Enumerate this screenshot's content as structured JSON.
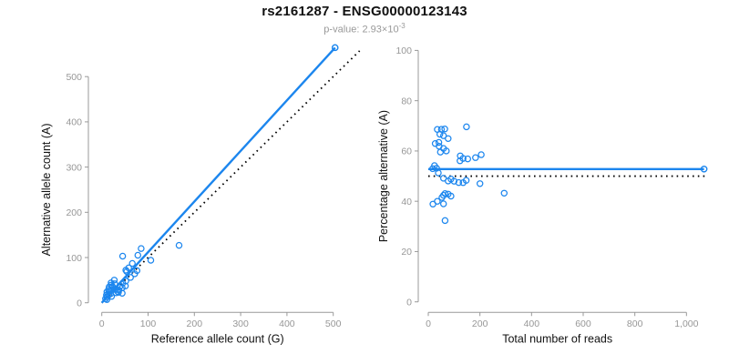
{
  "header": {
    "title": "rs2161287 - ENSG00000123143",
    "subtitle_prefix": "p-value: 2.93×10",
    "subtitle_exponent": "-3"
  },
  "colors": {
    "accent_blue": "#1C86EE",
    "dotted_line_black": "#000000",
    "axis_line_gray": "#999999",
    "tick_label_gray": "#979797",
    "axis_title_black": "#111111",
    "subtitle_gray": "#999999"
  },
  "samples": [
    [
      16,
      35
    ],
    [
      20,
      44
    ],
    [
      45,
      103
    ],
    [
      11,
      24
    ],
    [
      15,
      30
    ],
    [
      20,
      39
    ],
    [
      27,
      50
    ],
    [
      10,
      17
    ],
    [
      15,
      26
    ],
    [
      16,
      26
    ],
    [
      23,
      36
    ],
    [
      19,
      28
    ],
    [
      28,
      42
    ],
    [
      52,
      72
    ],
    [
      58,
      77
    ],
    [
      54,
      69
    ],
    [
      66,
      87
    ],
    [
      78,
      105
    ],
    [
      85,
      120
    ],
    [
      11,
      13
    ],
    [
      15,
      17
    ],
    [
      8,
      9
    ],
    [
      19,
      20
    ],
    [
      30,
      29
    ],
    [
      40,
      37
    ],
    [
      45,
      43
    ],
    [
      52,
      48
    ],
    [
      62,
      56
    ],
    [
      71,
      64
    ],
    [
      76,
      71
    ],
    [
      106,
      94
    ],
    [
      37,
      28
    ],
    [
      34,
      25
    ],
    [
      44,
      33
    ],
    [
      31,
      22
    ],
    [
      51,
      37
    ],
    [
      167,
      127
    ],
    [
      21,
      14
    ],
    [
      36,
      23
    ],
    [
      11,
      7
    ],
    [
      44,
      21
    ],
    [
      504,
      564
    ]
  ],
  "chart_data": [
    {
      "type": "scatter",
      "title": "",
      "xlabel": "Reference allele count (G)",
      "ylabel": "Alternative allele count (A)",
      "xlim": [
        0,
        557
      ],
      "ylim": [
        0,
        575
      ],
      "xticks": [
        0,
        100,
        200,
        300,
        400,
        500
      ],
      "yticks": [
        0,
        100,
        200,
        300,
        400,
        500
      ],
      "grid": false,
      "legend": "none",
      "points_source": "samples (x=ref, y=alt)",
      "fit_line": {
        "slope": 1.119,
        "intercept": 0,
        "style": "solid-blue",
        "ends_at_max_point": true
      },
      "identity_line": {
        "slope": 1,
        "intercept": 0,
        "style": "dotted-black",
        "x_end": 557
      }
    },
    {
      "type": "scatter",
      "title": "",
      "xlabel": "Total number of reads",
      "ylabel": "Percentage alternative (A)",
      "xlim": [
        0,
        1080
      ],
      "ylim": [
        0,
        100
      ],
      "xticks": [
        0,
        200,
        400,
        600,
        800,
        1000
      ],
      "xtick_labels": [
        "0",
        "200",
        "400",
        "600",
        "800",
        "1,000"
      ],
      "yticks": [
        0,
        20,
        40,
        60,
        80,
        100
      ],
      "grid": false,
      "legend": "none",
      "points_source": "samples (x=ref+alt, y=100*alt/(ref+alt))",
      "fit_percentage": 52.8,
      "null_percentage": 50,
      "dotted_x_end": 1080
    }
  ]
}
